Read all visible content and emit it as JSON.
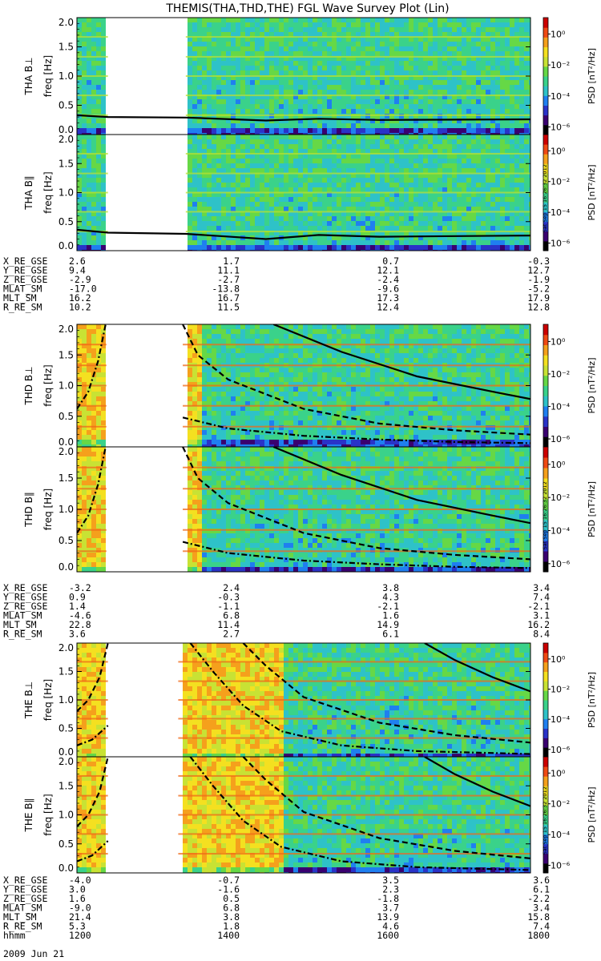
{
  "title": "THEMIS(THA,THD,THE) FGL Wave Survey Plot (Lin)",
  "timestamp": "Sat Sep 15 16:26:32 2012",
  "colorbar": {
    "label": "PSD [nT²/Hz]",
    "tick_labels": [
      "10⁰",
      "10⁻²",
      "10⁻⁴",
      "10⁻⁶"
    ],
    "colors": [
      "#000000",
      "#3a0070",
      "#2a33c8",
      "#1f7ff0",
      "#2ec2c8",
      "#3ad28a",
      "#66d846",
      "#c8e234",
      "#f4e020",
      "#f5a01c",
      "#ef4a14",
      "#cc0000"
    ]
  },
  "chart_data": [
    {
      "type": "heatmap",
      "panel": "THA B⊥",
      "ylabel": "THA B⊥",
      "yunits": "freq [Hz]",
      "ylim": [
        0,
        2.0
      ],
      "yticks": [
        "0.0",
        "0.5",
        "1.0",
        "1.5",
        "2.0"
      ],
      "xlim": [
        1200,
        1800
      ],
      "data_gaps": [
        [
          1241,
          1344
        ]
      ],
      "level": "low",
      "harmonic_lines": [
        0.33,
        0.67,
        1.0,
        1.33,
        1.67
      ],
      "overlay_curves": [
        {
          "style": "solid",
          "points": [
            [
              1200,
              0.33
            ],
            [
              1241,
              0.3
            ],
            [
              1344,
              0.29
            ],
            [
              1450,
              0.24
            ],
            [
              1520,
              0.27
            ],
            [
              1600,
              0.25
            ],
            [
              1800,
              0.26
            ]
          ]
        }
      ]
    },
    {
      "type": "heatmap",
      "panel": "THA B∥",
      "ylabel": "THA B∥",
      "yunits": "freq [Hz]",
      "ylim": [
        0,
        2.0
      ],
      "yticks": [
        "0.0",
        "0.5",
        "1.0",
        "1.5",
        "2.0"
      ],
      "xlim": [
        1200,
        1800
      ],
      "data_gaps": [
        [
          1241,
          1344
        ]
      ],
      "level": "low",
      "harmonic_lines": [
        0.33,
        0.67,
        1.0,
        1.33,
        1.67
      ],
      "overlay_curves": [
        {
          "style": "solid",
          "points": [
            [
              1200,
              0.36
            ],
            [
              1241,
              0.31
            ],
            [
              1344,
              0.29
            ],
            [
              1450,
              0.2
            ],
            [
              1520,
              0.27
            ],
            [
              1600,
              0.24
            ],
            [
              1800,
              0.26
            ]
          ]
        }
      ]
    },
    {
      "type": "heatmap",
      "panel": "THD B⊥",
      "ylabel": "THD B⊥",
      "yunits": "freq [Hz]",
      "ylim": [
        0,
        2.0
      ],
      "yticks": [
        "0.0",
        "0.5",
        "1.0",
        "1.5",
        "2.0"
      ],
      "xlim": [
        1200,
        1800
      ],
      "data_gaps": [
        [
          1239,
          1340
        ]
      ],
      "level": "high-to-low",
      "hot_until": 1365,
      "harmonic_lines": [
        0.33,
        0.67,
        1.0,
        1.33,
        1.67
      ],
      "overlay_curves": [
        {
          "style": "dashdot",
          "points": [
            [
              1200,
              0.62
            ],
            [
              1215,
              0.9
            ],
            [
              1228,
              1.4
            ],
            [
              1238,
              2.0
            ]
          ]
        },
        {
          "style": "dashed",
          "points": [
            [
              1340,
              2.0
            ],
            [
              1360,
              1.5
            ],
            [
              1400,
              1.1
            ],
            [
              1500,
              0.62
            ],
            [
              1600,
              0.38
            ],
            [
              1700,
              0.27
            ],
            [
              1800,
              0.2
            ]
          ]
        },
        {
          "style": "dashdot",
          "points": [
            [
              1340,
              0.48
            ],
            [
              1400,
              0.3
            ],
            [
              1500,
              0.18
            ],
            [
              1600,
              0.12
            ],
            [
              1700,
              0.08
            ],
            [
              1800,
              0.06
            ]
          ]
        },
        {
          "style": "solid",
          "points": [
            [
              1460,
              2.0
            ],
            [
              1550,
              1.55
            ],
            [
              1650,
              1.15
            ],
            [
              1750,
              0.9
            ],
            [
              1800,
              0.78
            ]
          ]
        }
      ]
    },
    {
      "type": "heatmap",
      "panel": "THD B∥",
      "ylabel": "THD B∥",
      "yunits": "freq [Hz]",
      "ylim": [
        0,
        2.0
      ],
      "yticks": [
        "0.0",
        "0.5",
        "1.0",
        "1.5",
        "2.0"
      ],
      "xlim": [
        1200,
        1800
      ],
      "data_gaps": [
        [
          1239,
          1340
        ]
      ],
      "level": "high-to-low",
      "hot_until": 1365,
      "harmonic_lines": [
        0.33,
        0.67,
        1.0,
        1.33,
        1.67
      ],
      "overlay_curves": [
        {
          "style": "dashdot",
          "points": [
            [
              1200,
              0.62
            ],
            [
              1215,
              0.9
            ],
            [
              1228,
              1.4
            ],
            [
              1238,
              2.0
            ]
          ]
        },
        {
          "style": "dashed",
          "points": [
            [
              1340,
              2.0
            ],
            [
              1360,
              1.5
            ],
            [
              1400,
              1.1
            ],
            [
              1500,
              0.62
            ],
            [
              1600,
              0.38
            ],
            [
              1700,
              0.27
            ],
            [
              1800,
              0.2
            ]
          ]
        },
        {
          "style": "dashdot",
          "points": [
            [
              1340,
              0.48
            ],
            [
              1400,
              0.3
            ],
            [
              1500,
              0.18
            ],
            [
              1600,
              0.12
            ],
            [
              1700,
              0.08
            ],
            [
              1800,
              0.06
            ]
          ]
        },
        {
          "style": "solid",
          "points": [
            [
              1460,
              2.0
            ],
            [
              1550,
              1.55
            ],
            [
              1650,
              1.15
            ],
            [
              1750,
              0.9
            ],
            [
              1800,
              0.78
            ]
          ]
        }
      ]
    },
    {
      "type": "heatmap",
      "panel": "THE B⊥",
      "ylabel": "THE B⊥",
      "yunits": "freq [Hz]",
      "ylim": [
        0,
        2.0
      ],
      "yticks": [
        "0.0",
        "0.5",
        "1.0",
        "1.5",
        "2.0"
      ],
      "xlim": [
        1200,
        1800
      ],
      "data_gaps": [
        [
          1241,
          1334
        ]
      ],
      "level": "high-to-low",
      "hot_until": 1468,
      "harmonic_lines": [
        0.33,
        0.67,
        1.0,
        1.33,
        1.67
      ],
      "overlay_curves": [
        {
          "style": "dashed",
          "points": [
            [
              1200,
              0.8
            ],
            [
              1215,
              1.0
            ],
            [
              1230,
              1.4
            ],
            [
              1241,
              2.0
            ]
          ]
        },
        {
          "style": "dashdot",
          "points": [
            [
              1200,
              0.2
            ],
            [
              1220,
              0.3
            ],
            [
              1241,
              0.55
            ]
          ]
        },
        {
          "style": "dashdot",
          "points": [
            [
              1350,
              2.0
            ],
            [
              1380,
              1.5
            ],
            [
              1420,
              0.9
            ],
            [
              1470,
              0.45
            ],
            [
              1550,
              0.2
            ],
            [
              1650,
              0.1
            ],
            [
              1800,
              0.05
            ]
          ]
        },
        {
          "style": "dashed",
          "points": [
            [
              1420,
              2.0
            ],
            [
              1450,
              1.6
            ],
            [
              1500,
              1.05
            ],
            [
              1600,
              0.6
            ],
            [
              1700,
              0.38
            ],
            [
              1800,
              0.25
            ]
          ]
        },
        {
          "style": "solid",
          "points": [
            [
              1660,
              2.0
            ],
            [
              1700,
              1.7
            ],
            [
              1750,
              1.4
            ],
            [
              1800,
              1.15
            ]
          ]
        }
      ]
    },
    {
      "type": "heatmap",
      "panel": "THE B∥",
      "ylabel": "THE B∥",
      "yunits": "freq [Hz]",
      "ylim": [
        0,
        2.0
      ],
      "yticks": [
        "0.0",
        "0.5",
        "1.0",
        "1.5",
        "2.0"
      ],
      "xlim": [
        1200,
        1800
      ],
      "data_gaps": [
        [
          1241,
          1334
        ]
      ],
      "level": "high-to-low",
      "hot_until": 1468,
      "harmonic_lines": [
        0.33,
        0.67,
        1.0,
        1.33,
        1.67
      ],
      "overlay_curves": [
        {
          "style": "dashed",
          "points": [
            [
              1200,
              0.8
            ],
            [
              1215,
              1.0
            ],
            [
              1230,
              1.4
            ],
            [
              1241,
              2.0
            ]
          ]
        },
        {
          "style": "dashdot",
          "points": [
            [
              1200,
              0.2
            ],
            [
              1220,
              0.3
            ],
            [
              1241,
              0.55
            ]
          ]
        },
        {
          "style": "dashdot",
          "points": [
            [
              1350,
              2.0
            ],
            [
              1380,
              1.5
            ],
            [
              1420,
              0.9
            ],
            [
              1470,
              0.45
            ],
            [
              1550,
              0.2
            ],
            [
              1650,
              0.1
            ],
            [
              1800,
              0.05
            ]
          ]
        },
        {
          "style": "dashed",
          "points": [
            [
              1420,
              2.0
            ],
            [
              1450,
              1.6
            ],
            [
              1500,
              1.05
            ],
            [
              1600,
              0.6
            ],
            [
              1700,
              0.38
            ],
            [
              1800,
              0.25
            ]
          ]
        },
        {
          "style": "solid",
          "points": [
            [
              1660,
              2.0
            ],
            [
              1700,
              1.7
            ],
            [
              1750,
              1.4
            ],
            [
              1800,
              1.15
            ]
          ]
        }
      ]
    }
  ],
  "ephemeris": [
    {
      "rows": [
        {
          "label": "X_RE_GSE",
          "values": [
            "2.6",
            "1.7",
            "0.7",
            "-0.3"
          ]
        },
        {
          "label": "Y_RE_GSE",
          "values": [
            "9.4",
            "11.1",
            "12.1",
            "12.7"
          ]
        },
        {
          "label": "Z_RE_GSE",
          "values": [
            "-2.9",
            "-2.7",
            "-2.4",
            "-1.9"
          ]
        },
        {
          "label": "MLAT_SM",
          "values": [
            "-17.0",
            "-13.8",
            "-9.6",
            "-5.2"
          ]
        },
        {
          "label": "MLT_SM",
          "values": [
            "16.2",
            "16.7",
            "17.3",
            "17.9"
          ]
        },
        {
          "label": "R_RE_SM",
          "values": [
            "10.2",
            "11.5",
            "12.4",
            "12.8"
          ]
        }
      ]
    },
    {
      "rows": [
        {
          "label": "X_RE_GSE",
          "values": [
            "-3.2",
            "2.4",
            "3.8",
            "3.4"
          ]
        },
        {
          "label": "Y_RE_GSE",
          "values": [
            "0.9",
            "-0.3",
            "4.3",
            "7.4"
          ]
        },
        {
          "label": "Z_RE_GSE",
          "values": [
            "1.4",
            "-1.1",
            "-2.1",
            "-2.1"
          ]
        },
        {
          "label": "MLAT_SM",
          "values": [
            "-4.6",
            "6.8",
            "1.6",
            "3.1"
          ]
        },
        {
          "label": "MLT_SM",
          "values": [
            "22.8",
            "11.4",
            "14.9",
            "16.2"
          ]
        },
        {
          "label": "R_RE_SM",
          "values": [
            "3.6",
            "2.7",
            "6.1",
            "8.4"
          ]
        }
      ]
    },
    {
      "rows": [
        {
          "label": "X_RE_GSE",
          "values": [
            "-4.0",
            "-0.7",
            "3.5",
            "3.6"
          ]
        },
        {
          "label": "Y_RE_GSE",
          "values": [
            "3.0",
            "-1.6",
            "2.3",
            "6.1"
          ]
        },
        {
          "label": "Z_RE_GSE",
          "values": [
            "1.6",
            "0.5",
            "-1.8",
            "-2.2"
          ]
        },
        {
          "label": "MLAT_SM",
          "values": [
            "-9.0",
            "6.8",
            "3.7",
            "3.4"
          ]
        },
        {
          "label": "MLT_SM",
          "values": [
            "21.4",
            "3.8",
            "13.9",
            "15.8"
          ]
        },
        {
          "label": "R_RE_SM",
          "values": [
            "5.3",
            "1.8",
            "4.6",
            "7.4"
          ]
        },
        {
          "label": "hhmm",
          "values": [
            "1200",
            "1400",
            "1600",
            "1800"
          ]
        }
      ]
    }
  ],
  "date": "2009 Jun 21"
}
